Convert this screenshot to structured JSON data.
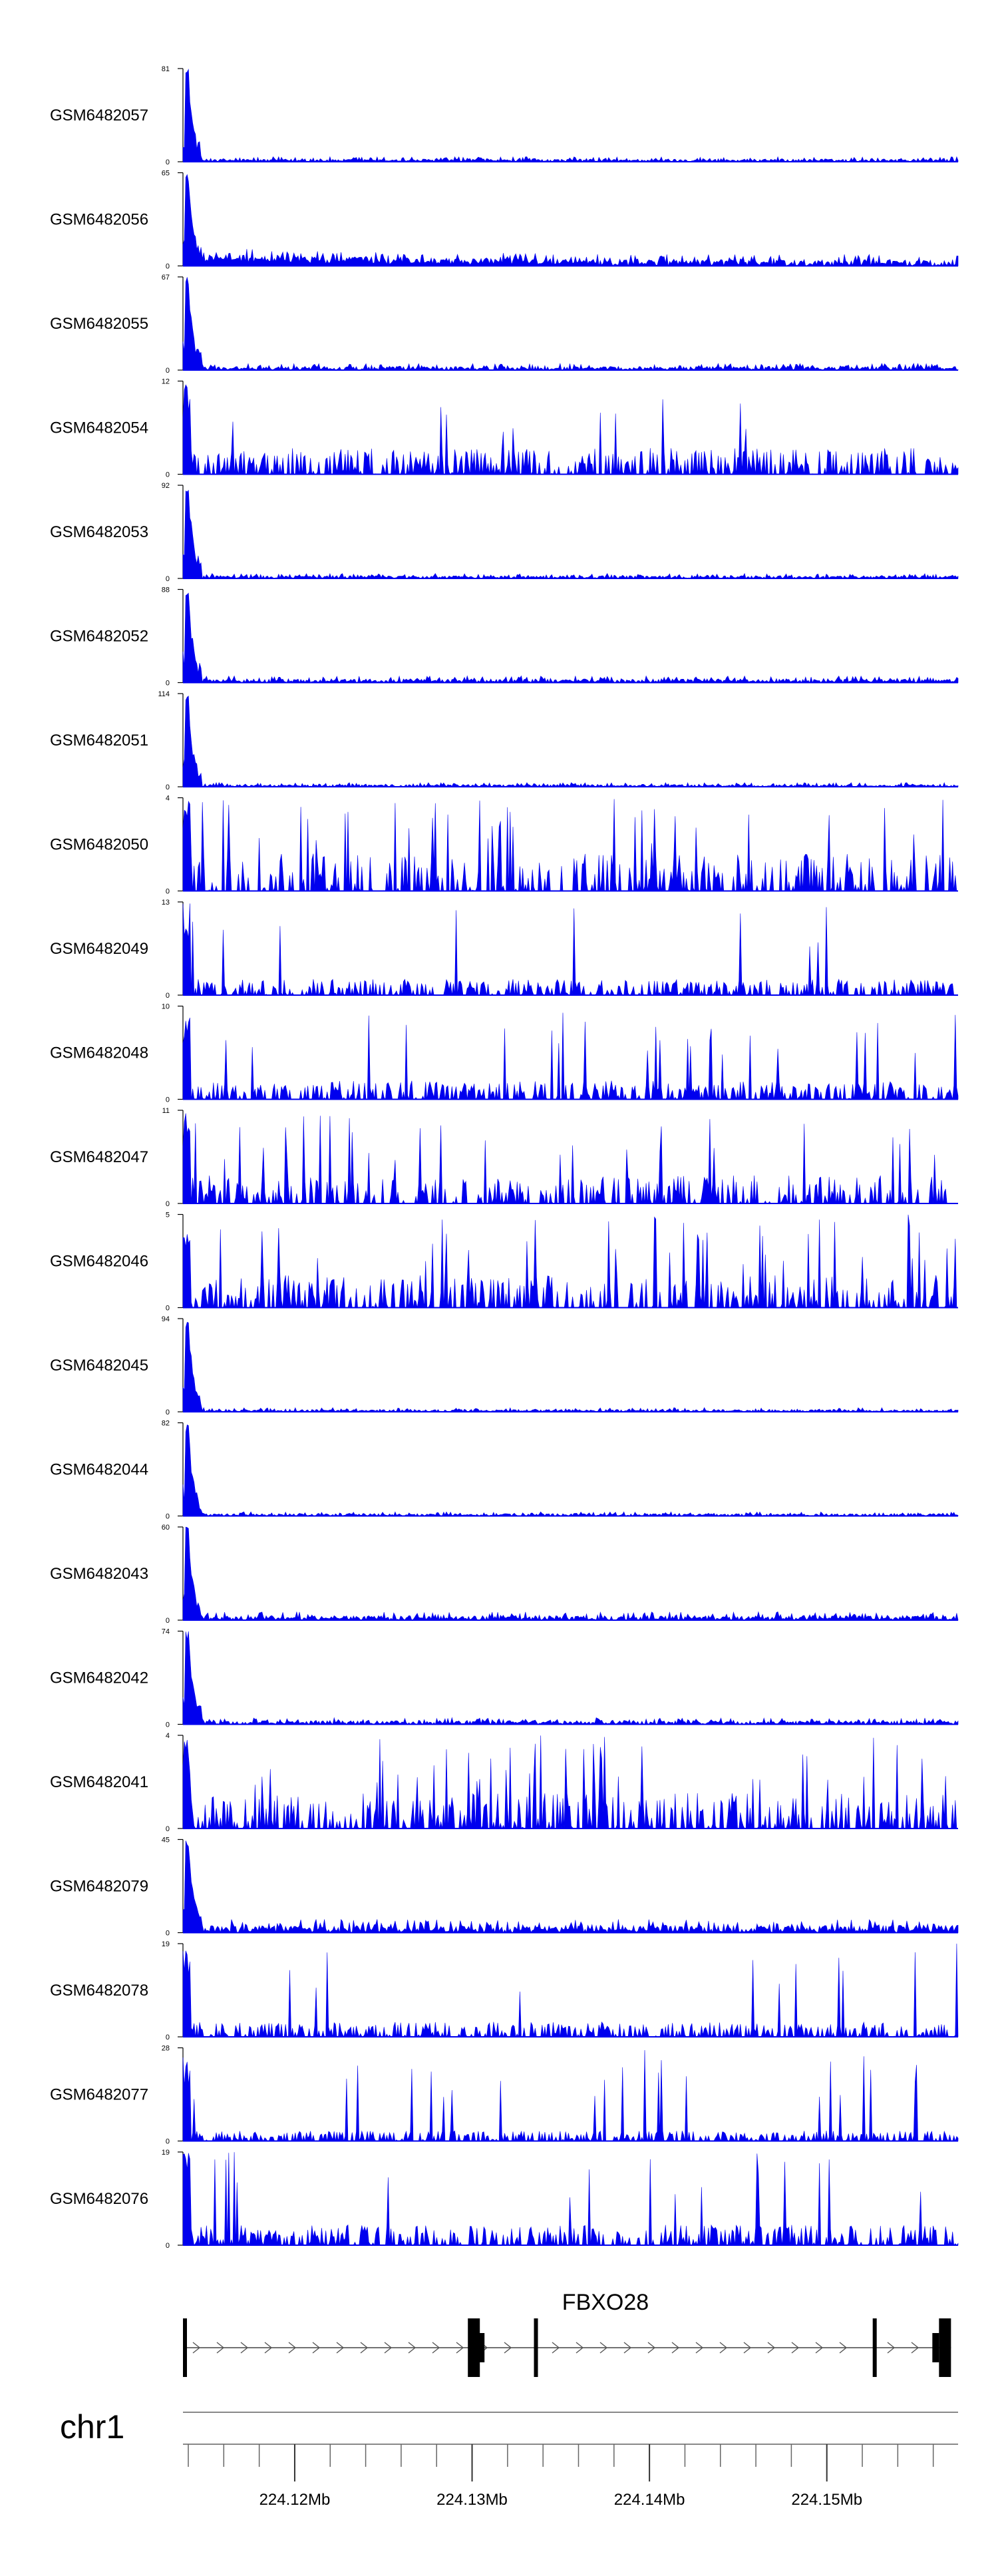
{
  "chart_data": {
    "type": "area",
    "color": "#0000ee",
    "x_range": [
      224.1137,
      224.1574
    ],
    "x_unit": "Mb",
    "tracks": [
      {
        "name": "GSM6482057",
        "ymax": "81",
        "profile": "early-peak",
        "level": 0.03
      },
      {
        "name": "GSM6482056",
        "ymax": "65",
        "profile": "early-peak-broad",
        "level": 0.07
      },
      {
        "name": "GSM6482055",
        "ymax": "67",
        "profile": "early-peak",
        "level": 0.04
      },
      {
        "name": "GSM6482054",
        "ymax": "12",
        "profile": "spiky-sparse",
        "level": 0.28
      },
      {
        "name": "GSM6482053",
        "ymax": "92",
        "profile": "early-peak",
        "level": 0.03
      },
      {
        "name": "GSM6482052",
        "ymax": "88",
        "profile": "early-peak",
        "level": 0.04
      },
      {
        "name": "GSM6482051",
        "ymax": "114",
        "profile": "early-peak",
        "level": 0.025
      },
      {
        "name": "GSM6482050",
        "ymax": "4",
        "profile": "spiky-dense",
        "level": 0.4
      },
      {
        "name": "GSM6482049",
        "ymax": "13",
        "profile": "spiky-medium",
        "level": 0.17
      },
      {
        "name": "GSM6482048",
        "ymax": "10",
        "profile": "spiky-medium",
        "level": 0.2
      },
      {
        "name": "GSM6482047",
        "ymax": "11",
        "profile": "spiky-dense",
        "level": 0.3
      },
      {
        "name": "GSM6482046",
        "ymax": "5",
        "profile": "spiky-dense",
        "level": 0.35
      },
      {
        "name": "GSM6482045",
        "ymax": "94",
        "profile": "early-peak",
        "level": 0.025
      },
      {
        "name": "GSM6482044",
        "ymax": "82",
        "profile": "early-peak",
        "level": 0.025
      },
      {
        "name": "GSM6482043",
        "ymax": "60",
        "profile": "early-peak",
        "level": 0.05
      },
      {
        "name": "GSM6482042",
        "ymax": "74",
        "profile": "early-peak",
        "level": 0.04
      },
      {
        "name": "GSM6482041",
        "ymax": "4",
        "profile": "spiky-dense",
        "level": 0.38
      },
      {
        "name": "GSM6482079",
        "ymax": "45",
        "profile": "early-peak",
        "level": 0.08
      },
      {
        "name": "GSM6482078",
        "ymax": "19",
        "profile": "spiky-medium",
        "level": 0.16
      },
      {
        "name": "GSM6482077",
        "ymax": "28",
        "profile": "spiky-medium",
        "level": 0.11
      },
      {
        "name": "GSM6482076",
        "ymax": "19",
        "profile": "spiky-medium",
        "level": 0.22
      }
    ],
    "ymin_label": "0",
    "gene": {
      "name": "FBXO28",
      "strand": "+",
      "exons_mb": [
        224.1137,
        224.1301,
        224.1336,
        224.1527,
        224.157
      ]
    },
    "chromosome": "chr1",
    "ticks": [
      {
        "mb": 224.12,
        "label": "224.12Mb"
      },
      {
        "mb": 224.13,
        "label": "224.13Mb"
      },
      {
        "mb": 224.14,
        "label": "224.14Mb"
      },
      {
        "mb": 224.15,
        "label": "224.15Mb"
      }
    ],
    "minor_tick_step_mb": 0.002
  }
}
